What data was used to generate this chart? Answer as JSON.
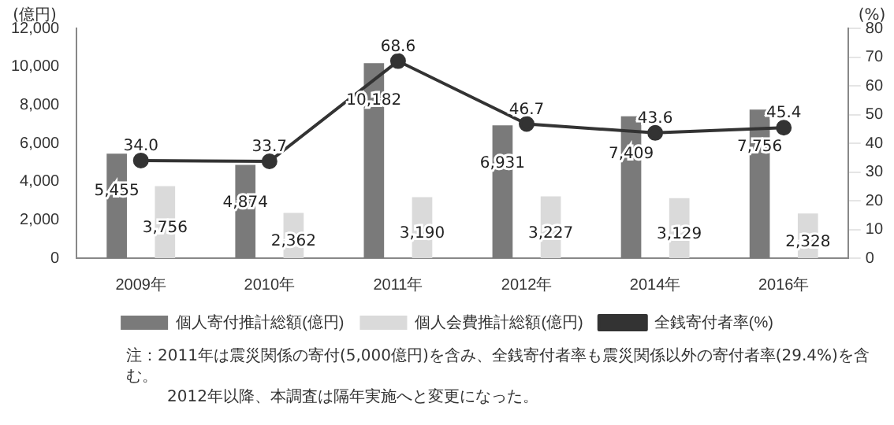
{
  "chart_data": {
    "type": "bar",
    "categories": [
      "2009年",
      "2010年",
      "2011年",
      "2012年",
      "2014年",
      "2016年"
    ],
    "ylabel": "(億円)",
    "y2label": "(%)",
    "series": [
      {
        "name": "個人寄付推計総額(億円)",
        "color": "#7a7a7a",
        "values": [
          5455,
          4874,
          10182,
          6931,
          7409,
          7756
        ],
        "value_labels": [
          "5,455",
          "4,874",
          "10,182",
          "6,931",
          "7,409",
          "7,756"
        ]
      },
      {
        "name": "個人会費推計総額(億円)",
        "color": "#dadada",
        "values": [
          3756,
          2362,
          3190,
          3227,
          3129,
          2328
        ],
        "value_labels": [
          "3,756",
          "2,362",
          "3,190",
          "3,227",
          "3,129",
          "2,328"
        ]
      },
      {
        "name": "全銭寄付者率(%)",
        "type": "line",
        "axis": "y2",
        "color": "#333333",
        "values": [
          34.0,
          33.7,
          68.6,
          46.7,
          43.6,
          45.4
        ],
        "value_labels": [
          "34.0",
          "33.7",
          "68.6",
          "46.7",
          "43.6",
          "45.4"
        ]
      }
    ],
    "ylim": [
      0,
      12000
    ],
    "yticks": [
      0,
      {
        "value": 2000,
        "label": "2,000"
      },
      {
        "value": 4000,
        "label": "4,000"
      },
      {
        "value": 6000,
        "label": "6,000"
      },
      {
        "value": 8000,
        "label": "8,000"
      },
      {
        "value": 10000,
        "label": "10,000"
      },
      {
        "value": 12000,
        "label": "12,000"
      }
    ],
    "y2lim": [
      0,
      80
    ],
    "y2ticks": [
      0,
      10,
      20,
      30,
      40,
      50,
      60,
      70,
      80
    ],
    "grid": false,
    "legend": "bottom",
    "marker": "circle",
    "annotations": [
      "注：2011年は震災関係の寄付(5,000億円)を含み、全銭寄付者率も震災関係以外の寄付者率(29.4%)を含む。",
      "2012年以降、本調査は隔年実施へと変更になった。"
    ]
  }
}
